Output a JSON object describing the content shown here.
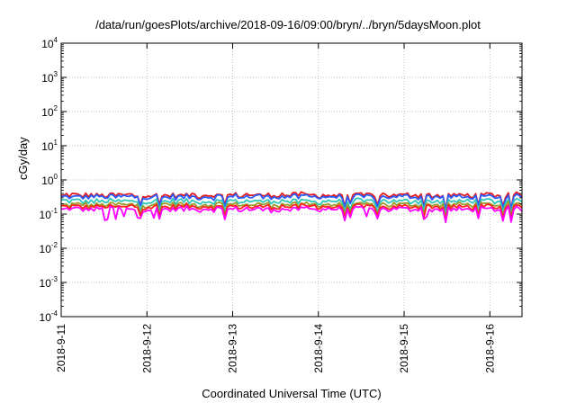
{
  "chart_data": {
    "type": "line",
    "title": "/data/run/goesPlots/archive/2018-09-16/09:00/bryn/../bryn/5daysMoon.plot",
    "xlabel": "Coordinated Universal Time (UTC)",
    "ylabel": "cGy/day",
    "y_scale": "log",
    "ylim": [
      0.0001,
      10000
    ],
    "y_ticks": [
      {
        "base": "10",
        "exp": "-4",
        "value": 0.0001
      },
      {
        "base": "10",
        "exp": "-3",
        "value": 0.001
      },
      {
        "base": "10",
        "exp": "-2",
        "value": 0.01
      },
      {
        "base": "10",
        "exp": "-1",
        "value": 0.1
      },
      {
        "base": "10",
        "exp": "0",
        "value": 1
      },
      {
        "base": "10",
        "exp": "1",
        "value": 10
      },
      {
        "base": "10",
        "exp": "2",
        "value": 100
      },
      {
        "base": "10",
        "exp": "3",
        "value": 1000
      },
      {
        "base": "10",
        "exp": "4",
        "value": 10000
      }
    ],
    "x_ticks": [
      "2018-9-11",
      "2018-9-12",
      "2018-9-13",
      "2018-9-14",
      "2018-9-15",
      "2018-9-16"
    ],
    "xlim": [
      "2018-09-11 00:00",
      "2018-09-16 09:00"
    ],
    "grid": true,
    "series": [
      {
        "color": "#e41a1c",
        "level": 0.36
      },
      {
        "color": "#2b5bff",
        "level": 0.32
      },
      {
        "color": "#2fc6b8",
        "level": 0.24
      },
      {
        "color": "#9b9b2a",
        "level": 0.19
      },
      {
        "color": "#ff2020",
        "level": 0.165
      },
      {
        "color": "#ff00ff",
        "level": 0.14
      }
    ]
  }
}
